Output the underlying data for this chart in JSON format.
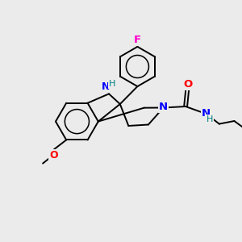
{
  "background_color": "#ebebeb",
  "bond_color": "#000000",
  "atom_colors": {
    "N": "#0000ff",
    "O": "#ff0000",
    "F": "#ff00cc",
    "H_label": "#008080",
    "C": "#000000"
  },
  "lw": 1.4
}
